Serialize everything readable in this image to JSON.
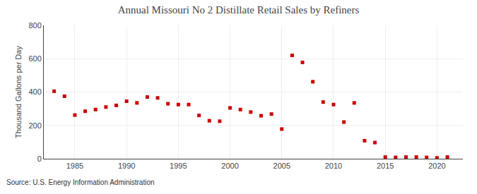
{
  "chart_data": {
    "type": "scatter",
    "title": "Annual Missouri No 2 Distillate Retail Sales by Refiners",
    "ylabel": "Thousand Gallons per Day",
    "annotations": [
      "Source: U.S. Energy Information Administration"
    ],
    "x": [
      1983,
      1984,
      1985,
      1986,
      1987,
      1988,
      1989,
      1990,
      1991,
      1992,
      1993,
      1994,
      1995,
      1996,
      1997,
      1998,
      1999,
      2000,
      2001,
      2002,
      2003,
      2004,
      2005,
      2006,
      2007,
      2008,
      2009,
      2010,
      2011,
      2012,
      2013,
      2014,
      2015,
      2016,
      2017,
      2018,
      2019,
      2020,
      2021
    ],
    "values": [
      405,
      375,
      262,
      285,
      295,
      310,
      320,
      345,
      335,
      370,
      365,
      330,
      325,
      325,
      260,
      228,
      225,
      305,
      295,
      280,
      258,
      268,
      178,
      620,
      578,
      462,
      340,
      325,
      220,
      335,
      108,
      97,
      10,
      8,
      10,
      10,
      8,
      5,
      10
    ],
    "color": "#cc0000",
    "marker": "square",
    "xlim": [
      1982,
      2022.5
    ],
    "xticks": [
      1985,
      1990,
      1995,
      2000,
      2005,
      2010,
      2015,
      2020
    ],
    "ylim": [
      0,
      800
    ],
    "yticks": [
      0,
      200,
      400,
      600,
      800
    ],
    "grid": true
  }
}
